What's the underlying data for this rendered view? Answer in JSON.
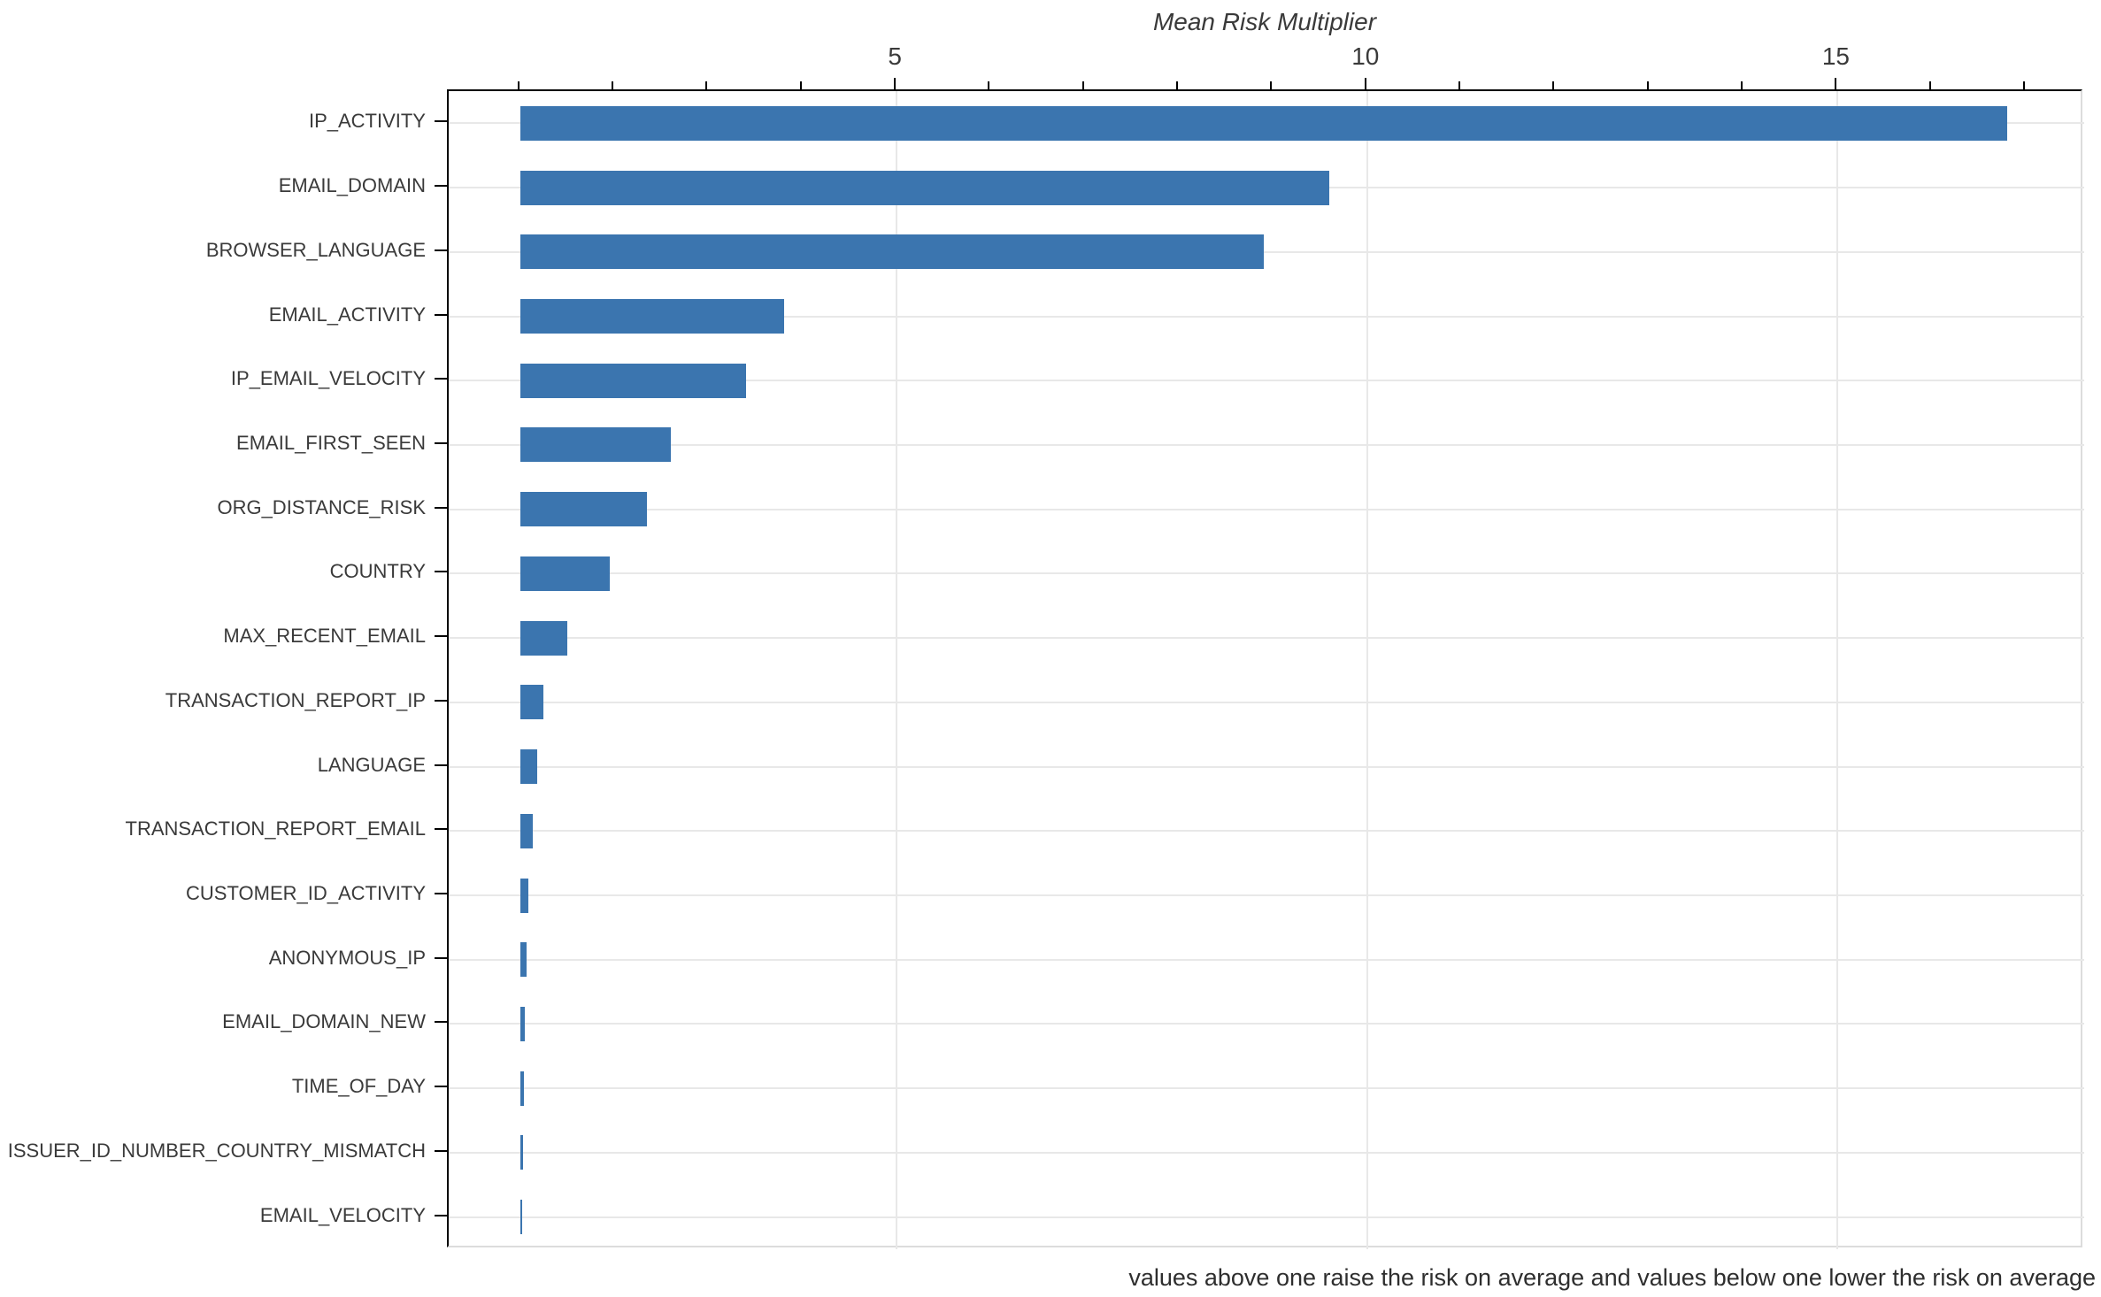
{
  "chart_data": {
    "type": "bar",
    "orientation": "horizontal",
    "title": "Mean Risk Multiplier",
    "footnote": "values above one raise the risk on average and values below one lower the risk on average",
    "categories": [
      "IP_ACTIVITY",
      "EMAIL_DOMAIN",
      "BROWSER_LANGUAGE",
      "EMAIL_ACTIVITY",
      "IP_EMAIL_VELOCITY",
      "EMAIL_FIRST_SEEN",
      "ORG_DISTANCE_RISK",
      "COUNTRY",
      "MAX_RECENT_EMAIL",
      "TRANSACTION_REPORT_IP",
      "LANGUAGE",
      "TRANSACTION_REPORT_EMAIL",
      "CUSTOMER_ID_ACTIVITY",
      "ANONYMOUS_IP",
      "EMAIL_DOMAIN_NEW",
      "TIME_OF_DAY",
      "ISSUER_ID_NUMBER_COUNTRY_MISMATCH",
      "EMAIL_VELOCITY"
    ],
    "values": [
      16.8,
      9.6,
      8.9,
      3.8,
      3.4,
      2.6,
      2.35,
      1.95,
      1.5,
      1.25,
      1.18,
      1.13,
      1.09,
      1.07,
      1.05,
      1.04,
      1.03,
      1.02
    ],
    "bar_baseline": 1,
    "xlim": [
      0.24,
      17.62
    ],
    "x_major_ticks": [
      5,
      10,
      15
    ],
    "x_minor_ticks_from": 1,
    "x_minor_ticks_to": 17,
    "grid": "vertical lines at major x ticks, horizontal line at each category",
    "legend": "none",
    "colors": {
      "bar": "#3b75af",
      "grid": "#e8e8e8",
      "axis": "#000000",
      "minor_border": "#dcdcdc",
      "text": "#3a3a3a"
    }
  }
}
